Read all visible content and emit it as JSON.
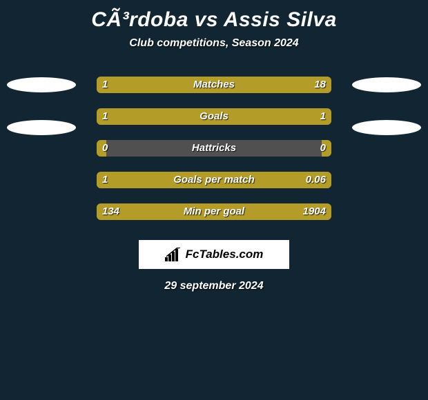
{
  "title": "CÃ³rdoba vs Assis Silva",
  "subtitle": "Club competitions, Season 2024",
  "date": "29 september 2024",
  "brand": "FcTables.com",
  "colors": {
    "background": "#112632",
    "left_segment": "#b39c27",
    "right_segment": "#b39c27",
    "mid_segment": "#505050",
    "oval": "#ffffff",
    "text": "#ffffff"
  },
  "rows": [
    {
      "label": "Matches",
      "left_value": "1",
      "right_value": "18",
      "show_ovals": true,
      "ovals_top_offset": 0,
      "left_pct": 17,
      "right_pct": 83
    },
    {
      "label": "Goals",
      "left_value": "1",
      "right_value": "1",
      "show_ovals": true,
      "ovals_top_offset": 16,
      "left_pct": 96,
      "right_pct": 4
    },
    {
      "label": "Hattricks",
      "left_value": "0",
      "right_value": "0",
      "show_ovals": false,
      "left_pct": 4,
      "right_pct": 4
    },
    {
      "label": "Goals per match",
      "left_value": "1",
      "right_value": "0.06",
      "show_ovals": false,
      "left_pct": 78,
      "right_pct": 22
    },
    {
      "label": "Min per goal",
      "left_value": "134",
      "right_value": "1904",
      "show_ovals": false,
      "left_pct": 4,
      "right_pct": 96
    }
  ]
}
